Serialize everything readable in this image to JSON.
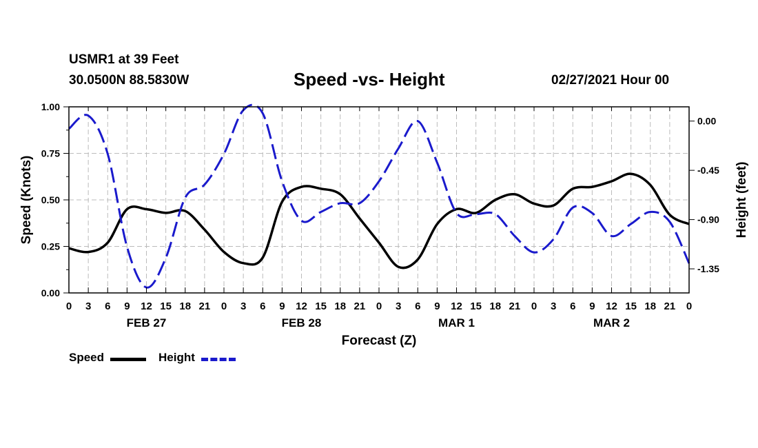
{
  "header": {
    "station": "USMR1 at 39 Feet",
    "coords": "30.0500N 88.5830W",
    "title": "Speed -vs- Height",
    "run": "02/27/2021 Hour 00"
  },
  "legend": {
    "speed_label": "Speed",
    "height_label": "Height"
  },
  "colors": {
    "speed": "#000000",
    "height": "#1a1acc",
    "grid": "#bbbbbb"
  },
  "chart_data": {
    "type": "line",
    "title": "Speed -vs- Height",
    "xlabel": "Forecast (Z)",
    "ylabel": "Speed (Knots)",
    "y2label": "Height (feet)",
    "xlim": [
      0,
      96
    ],
    "ylim": [
      0,
      1
    ],
    "y2lim": [
      -1.57,
      0.13
    ],
    "grid": true,
    "x_ticks": [
      0,
      3,
      6,
      9,
      12,
      15,
      18,
      21,
      24,
      27,
      30,
      33,
      36,
      39,
      42,
      45,
      48,
      51,
      54,
      57,
      60,
      63,
      66,
      69,
      72,
      75,
      78,
      81,
      84,
      87,
      90,
      93,
      96
    ],
    "x_tick_labels": [
      "0",
      "3",
      "6",
      "9",
      "12",
      "15",
      "18",
      "21",
      "0",
      "3",
      "6",
      "9",
      "12",
      "15",
      "18",
      "21",
      "0",
      "3",
      "6",
      "9",
      "12",
      "15",
      "18",
      "21",
      "0",
      "3",
      "6",
      "9",
      "12",
      "15",
      "18",
      "21",
      "0"
    ],
    "y_ticks": [
      0,
      0.25,
      0.5,
      0.75,
      1.0
    ],
    "y_tick_labels": [
      "0.00",
      "0.25",
      "0.50",
      "0.75",
      "1.00"
    ],
    "y2_ticks": [
      0,
      -0.45,
      -0.9,
      -1.35
    ],
    "y2_tick_labels": [
      "0.00",
      "-0.45",
      "-0.90",
      "-1.35"
    ],
    "date_labels": [
      {
        "x": 12,
        "label": "FEB 27"
      },
      {
        "x": 36,
        "label": "FEB 28"
      },
      {
        "x": 60,
        "label": "MAR 1"
      },
      {
        "x": 84,
        "label": "MAR 2"
      }
    ],
    "series": [
      {
        "name": "Speed",
        "axis": "left",
        "style": "solid",
        "x": [
          0,
          3,
          6,
          9,
          12,
          15,
          18,
          21,
          24,
          27,
          30,
          33,
          36,
          39,
          42,
          45,
          48,
          51,
          54,
          57,
          60,
          63,
          66,
          69,
          72,
          75,
          78,
          81,
          84,
          87,
          90,
          93,
          96
        ],
        "values": [
          0.24,
          0.22,
          0.27,
          0.45,
          0.45,
          0.43,
          0.44,
          0.34,
          0.22,
          0.16,
          0.19,
          0.49,
          0.57,
          0.56,
          0.53,
          0.4,
          0.27,
          0.14,
          0.18,
          0.37,
          0.45,
          0.43,
          0.5,
          0.53,
          0.48,
          0.47,
          0.56,
          0.57,
          0.6,
          0.64,
          0.58,
          0.42,
          0.37
        ]
      },
      {
        "name": "Height",
        "axis": "right",
        "style": "dashed",
        "x": [
          0,
          3,
          6,
          9,
          12,
          15,
          18,
          21,
          24,
          27,
          30,
          33,
          36,
          39,
          42,
          45,
          48,
          51,
          54,
          57,
          60,
          63,
          66,
          69,
          72,
          75,
          78,
          81,
          84,
          87,
          90,
          93,
          96
        ],
        "values": [
          -0.07,
          0.05,
          -0.3,
          -1.15,
          -1.52,
          -1.25,
          -0.7,
          -0.58,
          -0.3,
          0.1,
          0.07,
          -0.55,
          -0.91,
          -0.83,
          -0.75,
          -0.75,
          -0.55,
          -0.25,
          0.0,
          -0.38,
          -0.84,
          -0.85,
          -0.85,
          -1.05,
          -1.2,
          -1.08,
          -0.79,
          -0.84,
          -1.05,
          -0.94,
          -0.83,
          -0.92,
          -1.3
        ]
      }
    ]
  }
}
